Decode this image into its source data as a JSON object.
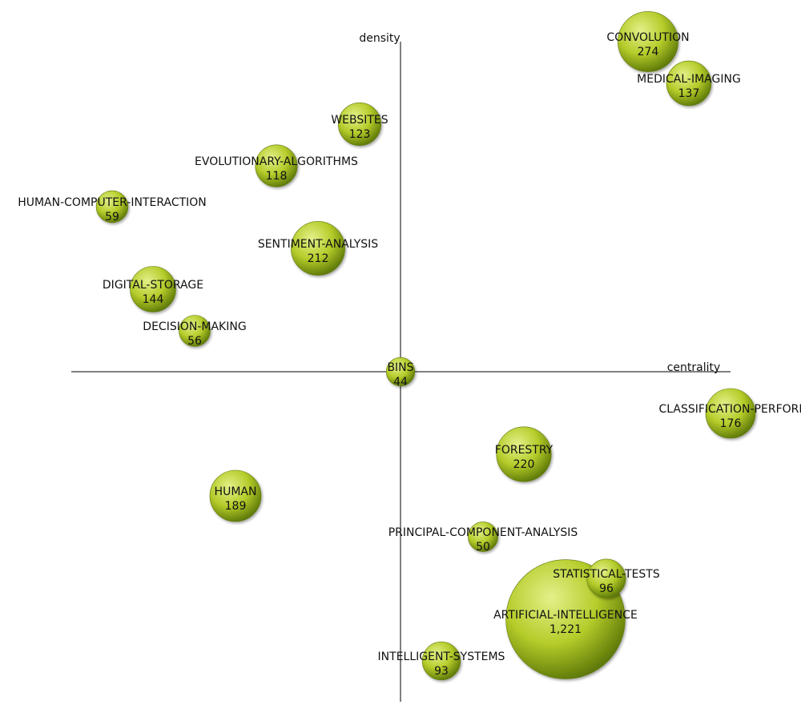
{
  "chart_data": {
    "type": "scatter",
    "subtype": "strategic-diagram-bubble",
    "title": "",
    "xlabel": "centrality",
    "ylabel": "density",
    "quadrant_axes": true,
    "grid": false,
    "legend": "none",
    "bubble_color": "#b5cc2a",
    "bubble_color_light": "#e4f08a",
    "bubble_color_dark": "#5f7a08",
    "bubbles": [
      {
        "label": "CONVOLUTION",
        "value": 274,
        "value_text": "274"
      },
      {
        "label": "MEDICAL-IMAGING",
        "value": 137,
        "value_text": "137"
      },
      {
        "label": "WEBSITES",
        "value": 123,
        "value_text": "123"
      },
      {
        "label": "EVOLUTIONARY-ALGORITHMS",
        "value": 118,
        "value_text": "118"
      },
      {
        "label": "HUMAN-COMPUTER-INTERACTION",
        "value": 59,
        "value_text": "59"
      },
      {
        "label": "SENTIMENT-ANALYSIS",
        "value": 212,
        "value_text": "212"
      },
      {
        "label": "DIGITAL-STORAGE",
        "value": 144,
        "value_text": "144"
      },
      {
        "label": "DECISION-MAKING",
        "value": 56,
        "value_text": "56"
      },
      {
        "label": "BINS",
        "value": 44,
        "value_text": "44"
      },
      {
        "label": "CLASSIFICATION-PERFORI",
        "value": 176,
        "value_text": "176"
      },
      {
        "label": "FORESTRY",
        "value": 220,
        "value_text": "220"
      },
      {
        "label": "HUMAN",
        "value": 189,
        "value_text": "189"
      },
      {
        "label": "PRINCIPAL-COMPONENT-ANALYSIS",
        "value": 50,
        "value_text": "50"
      },
      {
        "label": "STATISTICAL-TESTS",
        "value": 96,
        "value_text": "96"
      },
      {
        "label": "ARTIFICIAL-INTELLIGENCE",
        "value": 1221,
        "value_text": "1,221"
      },
      {
        "label": "INTELLIGENT-SYSTEMS",
        "value": 93,
        "value_text": "93"
      }
    ]
  }
}
